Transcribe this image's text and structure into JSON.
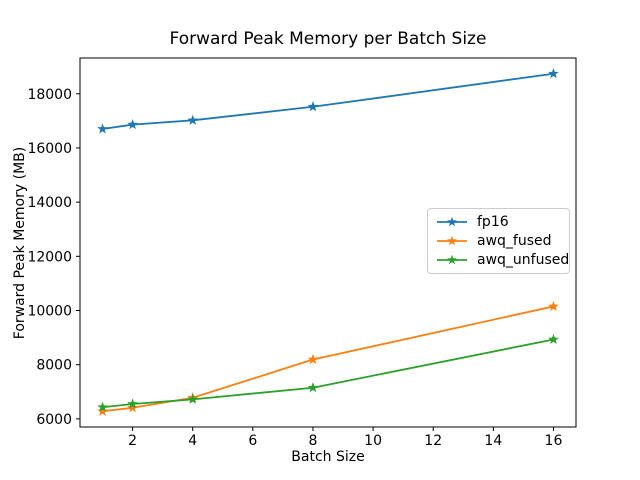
{
  "chart_data": {
    "type": "line",
    "title": "Forward Peak Memory per Batch Size",
    "xlabel": "Batch Size",
    "ylabel": "Forward Peak Memory (MB)",
    "x": [
      1,
      2,
      4,
      8,
      16
    ],
    "series": [
      {
        "name": "fp16",
        "color": "#1f77b4",
        "values": [
          16700,
          16860,
          17020,
          17520,
          18740
        ]
      },
      {
        "name": "awq_fused",
        "color": "#ff7f0e",
        "values": [
          6280,
          6410,
          6780,
          8190,
          10150
        ]
      },
      {
        "name": "awq_unfused",
        "color": "#2ca02c",
        "values": [
          6430,
          6550,
          6720,
          7150,
          8930
        ]
      }
    ],
    "marker": "star",
    "xlim": [
      0.25,
      16.75
    ],
    "ylim": [
      5700,
      19320
    ],
    "xticks": [
      2,
      4,
      6,
      8,
      10,
      12,
      14,
      16
    ],
    "yticks": [
      6000,
      8000,
      10000,
      12000,
      14000,
      16000,
      18000
    ],
    "grid": false,
    "legend_position": "center right",
    "background_color": "#ffffff",
    "frame_color": "#000000"
  }
}
